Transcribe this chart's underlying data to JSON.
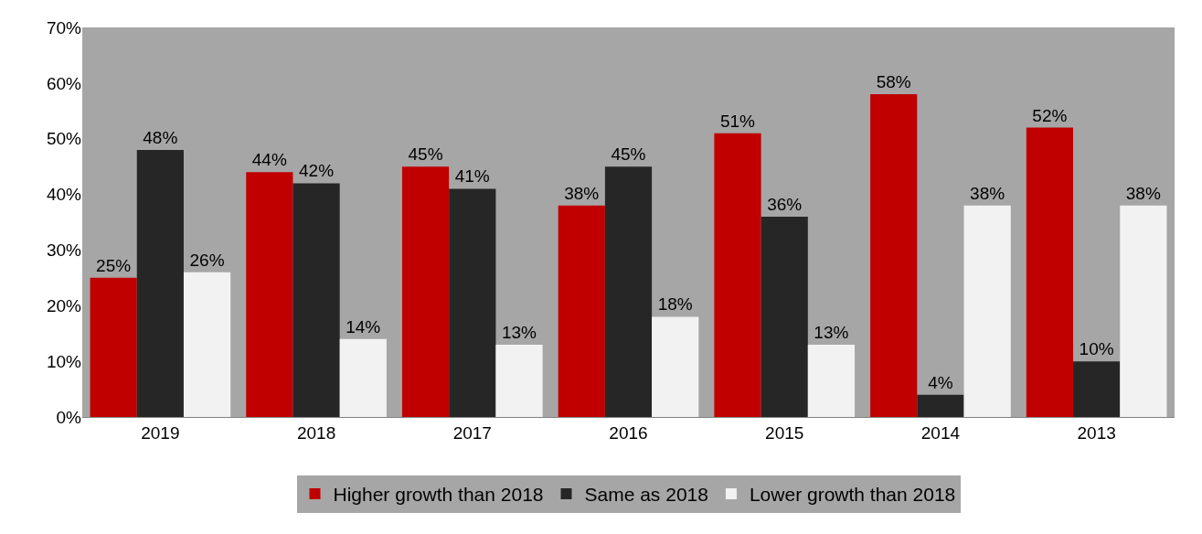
{
  "chart_data": {
    "type": "bar",
    "categories": [
      "2019",
      "2018",
      "2017",
      "2016",
      "2015",
      "2014",
      "2013"
    ],
    "series": [
      {
        "name": "Higher growth than 2018",
        "color": "#c00000",
        "values": [
          25,
          44,
          45,
          38,
          51,
          58,
          52
        ],
        "value_labels": [
          "25%",
          "44%",
          "45%",
          "38%",
          "51%",
          "58%",
          "52%"
        ]
      },
      {
        "name": "Same as 2018",
        "color": "#262626",
        "values": [
          48,
          42,
          41,
          45,
          36,
          4,
          10
        ],
        "value_labels": [
          "48%",
          "42%",
          "41%",
          "45%",
          "36%",
          "4%",
          "10%"
        ]
      },
      {
        "name": "Lower growth than 2018",
        "color": "#f2f2f2",
        "values": [
          26,
          14,
          13,
          18,
          13,
          38,
          38
        ],
        "value_labels": [
          "26%",
          "14%",
          "13%",
          "18%",
          "13%",
          "38%",
          "38%"
        ]
      }
    ],
    "ylim": [
      0,
      70
    ],
    "yticks": [
      {
        "value": 0,
        "label": "0%"
      },
      {
        "value": 10,
        "label": "10%"
      },
      {
        "value": 20,
        "label": "20%"
      },
      {
        "value": 30,
        "label": "30%"
      },
      {
        "value": 40,
        "label": "40%"
      },
      {
        "value": 50,
        "label": "50%"
      },
      {
        "value": 60,
        "label": "60%"
      },
      {
        "value": 70,
        "label": "70%"
      }
    ],
    "grid": false,
    "legend": "bottom"
  }
}
